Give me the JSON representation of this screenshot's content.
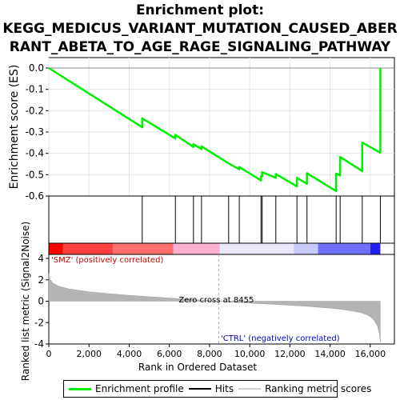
{
  "title_lines": [
    "Enrichment plot:",
    "KEGG_MEDICUS_VARIANT_MUTATION_CAUSED_ABER",
    "RANT_ABETA_TO_AGE_RAGE_SIGNALING_PATHWAY"
  ],
  "chart_data": {
    "type": "line",
    "top_panel": {
      "ylabel": "Enrichment score (ES)",
      "ylim": [
        -0.6,
        0.0
      ],
      "yticks": [
        "0.0",
        "-0.1",
        "-0.2",
        "-0.3",
        "-0.4",
        "-0.5",
        "-0.6"
      ],
      "ytick_values": [
        0.0,
        -0.1,
        -0.2,
        -0.3,
        -0.4,
        -0.5,
        -0.6
      ],
      "series": [
        {
          "name": "Enrichment profile",
          "color": "#00ee00",
          "x": [
            0,
            4650,
            4650,
            6300,
            6300,
            7200,
            7200,
            7600,
            7600,
            8950,
            8950,
            9480,
            9480,
            10560,
            10560,
            10620,
            10620,
            11300,
            11300,
            12350,
            12350,
            12850,
            12850,
            14300,
            14300,
            14500,
            14500,
            15600,
            15600,
            16500,
            16500
          ],
          "y": [
            0.0,
            -0.278,
            -0.236,
            -0.33,
            -0.313,
            -0.37,
            -0.357,
            -0.38,
            -0.367,
            -0.447,
            -0.447,
            -0.475,
            -0.464,
            -0.527,
            -0.508,
            -0.508,
            -0.488,
            -0.515,
            -0.497,
            -0.555,
            -0.515,
            -0.543,
            -0.493,
            -0.577,
            -0.495,
            -0.504,
            -0.417,
            -0.483,
            -0.349,
            -0.397,
            0.0
          ]
        }
      ]
    },
    "hits": {
      "name": "Hits",
      "color": "#000000",
      "x": [
        4650,
        6300,
        7200,
        7600,
        8950,
        9480,
        10560,
        10620,
        11300,
        12350,
        12850,
        14300,
        14500,
        15600,
        16500
      ]
    },
    "color_bar": {
      "colors": [
        "#ff0000",
        "#ff4040",
        "#ff7070",
        "#ffb0d0",
        "#e8e8f8",
        "#c8c8ff",
        "#7070ff",
        "#2020ff"
      ],
      "bounds": [
        0,
        700,
        3200,
        6200,
        8500,
        12200,
        13400,
        16000,
        16500
      ]
    },
    "metric_panel": {
      "name": "Ranking metric scores",
      "ylabel": "Ranked list metric (Signal2Noise)",
      "ylim": [
        -4,
        4
      ],
      "yticks": [
        "4",
        "2",
        "0",
        "-2",
        "-4"
      ],
      "ytick_values": [
        4,
        2,
        0,
        -2,
        -4
      ],
      "x": [
        0,
        50,
        200,
        500,
        1000,
        2000,
        3000,
        4000,
        5000,
        6000,
        7000,
        8000,
        8455,
        9000,
        10000,
        11000,
        12000,
        13000,
        14000,
        14500,
        15000,
        15500,
        15800,
        16000,
        16200,
        16350,
        16450,
        16500
      ],
      "values": [
        2.6,
        2.1,
        1.7,
        1.4,
        1.15,
        0.88,
        0.7,
        0.55,
        0.42,
        0.3,
        0.18,
        0.07,
        0.0,
        -0.08,
        -0.18,
        -0.28,
        -0.38,
        -0.5,
        -0.65,
        -0.75,
        -0.88,
        -1.05,
        -1.25,
        -1.45,
        -1.8,
        -2.3,
        -3.0,
        -3.85
      ],
      "annotations": [
        "'SMZ' (positively correlated)",
        "Zero cross at 8455",
        "'CTRL' (negatively correlated)"
      ],
      "zero_cross": 8455
    },
    "xlabel": "Rank in Ordered Dataset",
    "xlim": [
      0,
      17200
    ],
    "xticks": [
      "0",
      "2,000",
      "4,000",
      "6,000",
      "8,000",
      "10,000",
      "12,000",
      "14,000",
      "16,000"
    ],
    "xtick_values": [
      0,
      2000,
      4000,
      6000,
      8000,
      10000,
      12000,
      14000,
      16000
    ],
    "legend": [
      {
        "label": "Enrichment profile",
        "color": "#00ee00"
      },
      {
        "label": "Hits",
        "color": "#000000"
      },
      {
        "label": "Ranking metric scores",
        "color": "#d0d0d0"
      }
    ]
  }
}
